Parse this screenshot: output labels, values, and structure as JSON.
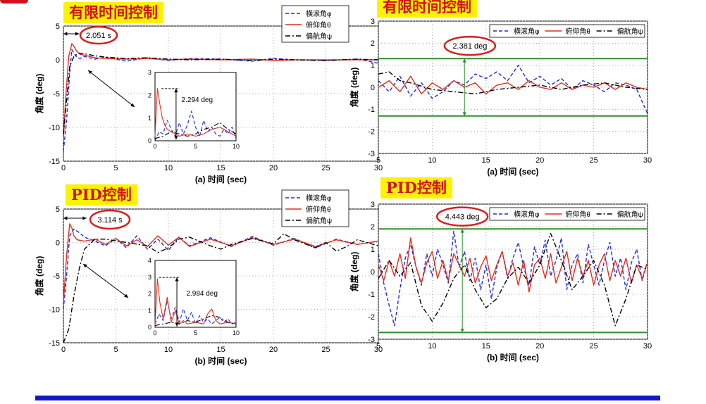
{
  "colors": {
    "roll": "#1f2ed6",
    "pitch": "#e0301e",
    "yaw": "#000000",
    "marker": "#2f8f2f",
    "callout": "#d6201e",
    "title_bg": "#fff200",
    "title_fg": "#d0101a",
    "bar": "#1418c8"
  },
  "section_titles": {
    "finite_left": "有限时间控制",
    "finite_right": "有限时间控制",
    "pid_left": "PID控制",
    "pid_right": "PID控制"
  },
  "chart_data": [
    {
      "id": "a-full",
      "type": "line",
      "xlabel": "(a) 时间 (sec)",
      "ylabel": "角度 (deg)",
      "xlim": [
        0,
        30
      ],
      "ylim": [
        -15,
        5
      ],
      "xticks": [
        "0",
        "5",
        "10",
        "15",
        "20",
        "25",
        "30"
      ],
      "yticks": [
        "5",
        "0",
        "-5",
        "-10",
        "-15"
      ],
      "legend": [
        "横滚角φ",
        "俯仰角θ",
        "偏航角ψ"
      ],
      "annotations": [
        "2.051 s"
      ],
      "series": [
        {
          "name": "横滚角φ",
          "x": [
            0,
            0.3,
            0.6,
            0.8,
            1,
            1.3,
            1.6,
            2,
            3,
            4,
            6,
            8,
            10,
            12,
            15,
            18,
            20,
            22,
            25,
            28,
            30
          ],
          "y": [
            -13.5,
            -9,
            -2,
            1.5,
            1,
            0.3,
            0.2,
            0.5,
            0.1,
            0.4,
            -0.2,
            0.3,
            -0.1,
            0.2,
            0.1,
            -0.2,
            0.2,
            0,
            -0.1,
            0.1,
            -0.5
          ]
        },
        {
          "name": "俯仰角θ",
          "x": [
            0,
            0.2,
            0.5,
            0.8,
            1,
            1.3,
            1.6,
            2,
            3,
            4,
            6,
            8,
            10,
            12,
            15,
            18,
            20,
            22,
            25,
            28,
            30
          ],
          "y": [
            -12,
            -6,
            0.5,
            2.4,
            2,
            1.2,
            0.8,
            0.7,
            0.3,
            0.2,
            0.1,
            0.2,
            0,
            0.1,
            0,
            0.1,
            -0.1,
            0,
            0,
            0,
            0
          ]
        },
        {
          "name": "偏航角ψ",
          "x": [
            0,
            0.3,
            0.6,
            1,
            1.5,
            2,
            3,
            4,
            6,
            8,
            10,
            12,
            15,
            18,
            20,
            22,
            25,
            28,
            30
          ],
          "y": [
            -11,
            -6,
            -1,
            0.5,
            1,
            0.9,
            0.6,
            0.4,
            0.2,
            0.3,
            0.1,
            0,
            0.1,
            -0.1,
            0.1,
            0,
            -0.1,
            0.1,
            0
          ]
        }
      ]
    },
    {
      "id": "a-zoom",
      "type": "line",
      "xlim": [
        0,
        10
      ],
      "ylim": [
        0,
        3
      ],
      "xticks": [
        "0",
        "5",
        "10"
      ],
      "yticks": [
        "3",
        "2",
        "1",
        "0"
      ],
      "annotations": [
        "2.294 deg"
      ],
      "series": [
        {
          "name": "横滚角φ",
          "x": [
            0,
            0.5,
            1,
            1.5,
            2,
            2.5,
            3,
            3.5,
            4,
            4.5,
            5,
            5.5,
            6,
            6.5,
            7,
            7.5,
            8,
            8.5,
            9,
            9.5,
            10
          ],
          "y": [
            0,
            0.4,
            0.3,
            0.9,
            0.5,
            0.2,
            0.8,
            0.3,
            0.7,
            1.3,
            0.6,
            0.2,
            0.9,
            0.4,
            0.6,
            0.3,
            0.2,
            0.5,
            0.3,
            0.6,
            0.1
          ]
        },
        {
          "name": "俯仰角θ",
          "x": [
            0,
            0.3,
            0.6,
            0.9,
            1.2,
            1.5,
            2,
            2.5,
            3,
            4,
            5,
            6,
            7,
            8,
            9,
            10
          ],
          "y": [
            0.2,
            2.3,
            1.6,
            1,
            0.7,
            0.5,
            0.4,
            0.3,
            0.2,
            0.3,
            0.2,
            0.3,
            0.5,
            0.6,
            0.4,
            0.2
          ]
        },
        {
          "name": "偏航角ψ",
          "x": [
            0,
            1,
            2,
            3,
            4,
            5,
            6,
            7,
            8,
            9,
            10
          ],
          "y": [
            0.1,
            0.2,
            0.4,
            0.3,
            0.2,
            0.3,
            0.5,
            0.6,
            0.8,
            0.5,
            0.3
          ]
        }
      ]
    },
    {
      "id": "a-steady",
      "type": "line",
      "xlabel": "(a) 时间 (sec)",
      "ylabel": "角度 (deg)",
      "xlim": [
        5,
        30
      ],
      "ylim": [
        -3,
        3
      ],
      "xticks": [
        "5",
        "10",
        "15",
        "20",
        "25",
        "30"
      ],
      "yticks": [
        "3",
        "2",
        "1",
        "0",
        "-1",
        "-2",
        "-3"
      ],
      "legend": [
        "横滚角φ",
        "俯仰角θ",
        "偏航角ψ"
      ],
      "annotations": [
        "2.381 deg"
      ],
      "reference_lines": [
        1.3,
        -1.3
      ],
      "series": [
        {
          "name": "横滚角φ",
          "x": [
            5,
            6,
            7,
            8,
            9,
            10,
            11,
            12,
            13,
            14,
            15,
            16,
            17,
            18,
            19,
            20,
            21,
            22,
            23,
            24,
            25,
            26,
            27,
            28,
            29,
            30
          ],
          "y": [
            0.3,
            -0.2,
            0.5,
            -0.4,
            0.2,
            -0.5,
            -0.2,
            0.3,
            0.1,
            0.6,
            0.4,
            0.7,
            0.3,
            1.0,
            0.2,
            0.5,
            0.1,
            0.4,
            -0.1,
            0.3,
            0.1,
            -0.2,
            0.2,
            0.1,
            -0.1,
            -1.2
          ]
        },
        {
          "name": "俯仰角θ",
          "x": [
            5,
            6,
            7,
            8,
            9,
            10,
            11,
            12,
            13,
            14,
            15,
            16,
            17,
            18,
            19,
            20,
            21,
            22,
            23,
            24,
            25,
            26,
            27,
            28,
            29,
            30
          ],
          "y": [
            0,
            0.3,
            -0.2,
            0.5,
            -0.3,
            0.2,
            -0.1,
            0.3,
            0,
            0.2,
            -0.3,
            0.1,
            0.2,
            -0.1,
            0.3,
            0,
            -0.1,
            0.2,
            -0.1,
            0.1,
            0,
            0.2,
            -0.1,
            0.2,
            0,
            -0.1
          ]
        },
        {
          "name": "偏航角ψ",
          "x": [
            5,
            6,
            7,
            8,
            10,
            12,
            14,
            16,
            18,
            20,
            22,
            24,
            26,
            28,
            30
          ],
          "y": [
            0.6,
            0.7,
            0.3,
            0.2,
            -0.1,
            -0.2,
            -0.3,
            -0.1,
            0,
            0.1,
            -0.1,
            0.1,
            0.2,
            0,
            -0.1
          ]
        }
      ]
    },
    {
      "id": "b-full",
      "type": "line",
      "xlabel": "(b) 时间 (sec)",
      "ylabel": "角度 (deg)",
      "xlim": [
        0,
        30
      ],
      "ylim": [
        -15,
        5
      ],
      "xticks": [
        "0",
        "5",
        "10",
        "15",
        "20",
        "25",
        "30"
      ],
      "yticks": [
        "5",
        "0",
        "-5",
        "-10",
        "-15"
      ],
      "legend": [
        "横滚角φ",
        "俯仰角θ",
        "偏航角ψ"
      ],
      "annotations": [
        "3.114 s"
      ],
      "series": [
        {
          "name": "横滚角φ",
          "x": [
            0,
            0.3,
            0.6,
            1,
            1.5,
            2,
            3,
            4,
            5,
            6,
            7,
            8,
            9,
            10,
            11,
            12,
            14,
            16,
            18,
            20,
            22,
            24,
            26,
            28,
            30
          ],
          "y": [
            -10,
            -5,
            1,
            2,
            1.5,
            0.8,
            0.2,
            -0.5,
            0.6,
            -0.8,
            1,
            -1,
            0.5,
            -1.2,
            0.8,
            -0.5,
            0.7,
            -0.6,
            0.9,
            -0.4,
            0.6,
            -0.8,
            0.5,
            -0.3,
            0.2
          ]
        },
        {
          "name": "俯仰角θ",
          "x": [
            0,
            0.3,
            0.6,
            0.8,
            1,
            1.3,
            2,
            3,
            4,
            5,
            6,
            7,
            8,
            9,
            10,
            11,
            12,
            14,
            16,
            18,
            20,
            22,
            24,
            26,
            28,
            30
          ],
          "y": [
            -9,
            -2,
            2.8,
            2.2,
            1,
            0.4,
            0.2,
            0.5,
            -0.3,
            0.6,
            -0.5,
            0.4,
            -0.6,
            1,
            -0.4,
            0.8,
            -0.6,
            0.5,
            -0.5,
            0.7,
            -0.3,
            0.5,
            -0.6,
            0.4,
            -0.3,
            0.2
          ]
        },
        {
          "name": "偏航角ψ",
          "x": [
            0,
            0.5,
            1,
            1.5,
            2,
            3,
            4,
            6,
            8,
            9,
            10,
            11,
            12,
            14,
            15,
            16,
            18,
            20,
            21,
            22,
            24,
            25,
            26,
            27,
            28,
            30
          ],
          "y": [
            -15,
            -13,
            -8,
            -4,
            -1,
            0.5,
            0.5,
            0,
            -0.5,
            -1.5,
            -0.8,
            0.5,
            0.8,
            -0.5,
            -1,
            -0.3,
            0.6,
            -0.2,
            1.3,
            0.4,
            -0.8,
            0,
            -1.3,
            -0.6,
            0.4,
            -0.5
          ]
        }
      ]
    },
    {
      "id": "b-zoom",
      "type": "line",
      "xlim": [
        0,
        10
      ],
      "ylim": [
        0,
        4
      ],
      "xticks": [
        "0",
        "5",
        "10"
      ],
      "yticks": [
        "4",
        "3",
        "2",
        "1",
        "0"
      ],
      "annotations": [
        "2.984 deg"
      ],
      "series": [
        {
          "name": "横滚角φ",
          "x": [
            0,
            0.5,
            1,
            1.5,
            2,
            2.5,
            3,
            3.5,
            4,
            4.5,
            5,
            5.5,
            6,
            6.5,
            7,
            7.5,
            8,
            8.5,
            9,
            9.5,
            10
          ],
          "y": [
            0.2,
            0.8,
            0.4,
            1.6,
            0.5,
            1.2,
            0.3,
            1.1,
            0.4,
            0.9,
            0.2,
            0.7,
            0.3,
            0.5,
            0.2,
            0.4,
            0.6,
            0.3,
            0.5,
            0.2,
            0.3
          ]
        },
        {
          "name": "俯仰角θ",
          "x": [
            0,
            0.3,
            0.6,
            1,
            1.5,
            2,
            2.5,
            3,
            3.5,
            4,
            5,
            6,
            6.5,
            7,
            7.5,
            8,
            9,
            10
          ],
          "y": [
            0.1,
            2.9,
            1.5,
            0.5,
            1.8,
            0.3,
            1,
            0.2,
            0.4,
            0.2,
            0.3,
            0.2,
            0.8,
            1.1,
            0.4,
            0.2,
            0.3,
            0.2
          ]
        },
        {
          "name": "偏航角ψ",
          "x": [
            0,
            1,
            2,
            3,
            4,
            5,
            6,
            7,
            8,
            9,
            10
          ],
          "y": [
            0.1,
            0.2,
            0.3,
            0.2,
            0.4,
            0.3,
            0.5,
            0.7,
            0.6,
            0.3,
            0.2
          ]
        }
      ]
    },
    {
      "id": "b-steady",
      "type": "line",
      "xlabel": "(b) 时间 (sec)",
      "ylabel": "角度 (deg)",
      "xlim": [
        5,
        30
      ],
      "ylim": [
        -3,
        3
      ],
      "xticks": [
        "5",
        "10",
        "15",
        "20",
        "25",
        "30"
      ],
      "yticks": [
        "3",
        "2",
        "1",
        "0",
        "-1",
        "-2",
        "-3"
      ],
      "legend": [
        "横滚角φ",
        "俯仰角θ",
        "偏航角ψ"
      ],
      "annotations": [
        "4.443 deg"
      ],
      "reference_lines": [
        1.9,
        -2.7
      ],
      "series": [
        {
          "name": "横滚角φ",
          "x": [
            5,
            5.5,
            6,
            6.5,
            7,
            7.5,
            8,
            8.5,
            9,
            9.5,
            10,
            10.5,
            11,
            11.5,
            12,
            12.5,
            13,
            13.5,
            14,
            14.5,
            15,
            15.5,
            16,
            16.5,
            17,
            17.5,
            18,
            18.5,
            19,
            19.5,
            20,
            20.5,
            21,
            21.5,
            22,
            22.5,
            23,
            23.5,
            24,
            24.5,
            25,
            25.5,
            26,
            26.5,
            27,
            27.5,
            28,
            28.5,
            29,
            29.5,
            30
          ],
          "y": [
            0.8,
            -0.5,
            -1.5,
            -2.4,
            -0.8,
            0.6,
            1.2,
            0.2,
            -0.6,
            0.8,
            -0.2,
            1.0,
            0.3,
            -0.5,
            1.8,
            0.2,
            0.9,
            -0.4,
            0.6,
            -0.8,
            0.3,
            -1.2,
            0.2,
            0.9,
            -0.3,
            0.6,
            1.3,
            0.2,
            -0.6,
            1.1,
            0.3,
            1.4,
            -0.2,
            0.5,
            1.5,
            -0.8,
            0.3,
            0.8,
            -0.5,
            1.2,
            0.3,
            -0.6,
            0.5,
            1.3,
            -0.2,
            0.6,
            -0.8,
            0.4,
            1.0,
            -0.4,
            0.5
          ]
        },
        {
          "name": "俯仰角θ",
          "x": [
            5,
            5.5,
            6,
            6.5,
            7,
            7.5,
            8,
            8.5,
            9,
            9.5,
            10,
            10.5,
            11,
            11.5,
            12,
            12.5,
            13,
            13.5,
            14,
            14.5,
            15,
            15.5,
            16,
            16.5,
            17,
            17.5,
            18,
            18.5,
            19,
            19.5,
            20,
            20.5,
            21,
            21.5,
            22,
            22.5,
            23,
            23.5,
            24,
            24.5,
            25,
            25.5,
            26,
            26.5,
            27,
            27.5,
            28,
            28.5,
            29,
            29.5,
            30
          ],
          "y": [
            0.3,
            -0.4,
            0.5,
            -0.2,
            0.8,
            -0.3,
            1.5,
            0.2,
            -0.5,
            0.4,
            0.9,
            -0.3,
            0.5,
            -0.4,
            0.8,
            0.3,
            -0.2,
            0.6,
            -0.5,
            0.2,
            0.7,
            -0.4,
            0.3,
            0.9,
            -0.2,
            0.4,
            -0.6,
            0.5,
            -0.9,
            0.3,
            0.6,
            -0.3,
            0.8,
            -0.5,
            0.2,
            0.9,
            -0.4,
            0.6,
            -0.2,
            0.5,
            -0.6,
            0.3,
            0.8,
            -0.4,
            0.5,
            -0.2,
            0.6,
            -0.5,
            0.3,
            -0.3,
            0.4
          ]
        },
        {
          "name": "偏航角ψ",
          "x": [
            5,
            6,
            7,
            8,
            9,
            10,
            11,
            12,
            13,
            14,
            15,
            16,
            17,
            18,
            19,
            20,
            21,
            22,
            23,
            24,
            25,
            26,
            27,
            28,
            29,
            30
          ],
          "y": [
            -0.3,
            0.5,
            -0.2,
            0.4,
            -1.5,
            -2.2,
            -1.4,
            -0.3,
            0.3,
            -0.8,
            -1.6,
            -1.2,
            -0.3,
            0.2,
            -0.5,
            0.3,
            1.7,
            0.5,
            -0.8,
            -0.2,
            0.5,
            -0.6,
            -2.4,
            -1.2,
            0.3,
            0.1
          ]
        }
      ]
    }
  ]
}
